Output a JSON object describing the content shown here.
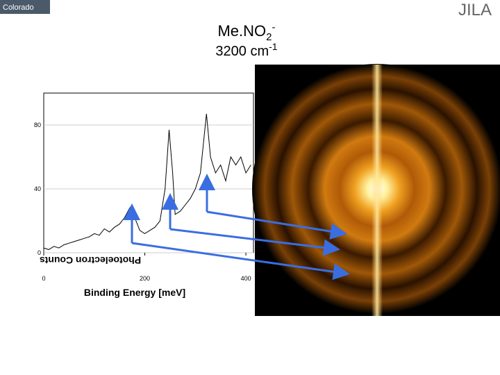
{
  "header": {
    "left_logo": "Colorado",
    "right_logo": "JILA"
  },
  "chart_data": {
    "type": "line",
    "title_parts": [
      "Me.NO",
      "2",
      "-"
    ],
    "subtitle_parts": [
      "3200 cm",
      "-1"
    ],
    "x_label": "Binding Energy [meV]",
    "y_label": "Photoelectron Counts",
    "xlim": [
      0,
      415
    ],
    "ylim": [
      0,
      100
    ],
    "xticks": [
      0,
      200,
      400
    ],
    "yticks": [
      0,
      40,
      80
    ],
    "grid": true,
    "color": "#000000",
    "x": [
      0,
      10,
      20,
      30,
      40,
      50,
      60,
      70,
      80,
      90,
      100,
      110,
      120,
      130,
      140,
      150,
      160,
      170,
      175,
      180,
      190,
      200,
      210,
      220,
      230,
      240,
      248,
      255,
      260,
      270,
      280,
      290,
      300,
      310,
      322,
      330,
      340,
      350,
      360,
      370,
      380,
      390,
      400,
      410
    ],
    "values": [
      3,
      2,
      4,
      3,
      5,
      6,
      7,
      8,
      9,
      10,
      12,
      11,
      15,
      13,
      16,
      18,
      22,
      28,
      30,
      22,
      14,
      12,
      14,
      16,
      20,
      40,
      77,
      50,
      24,
      26,
      30,
      34,
      40,
      50,
      87,
      60,
      50,
      55,
      45,
      60,
      55,
      60,
      50,
      55
    ]
  }
}
